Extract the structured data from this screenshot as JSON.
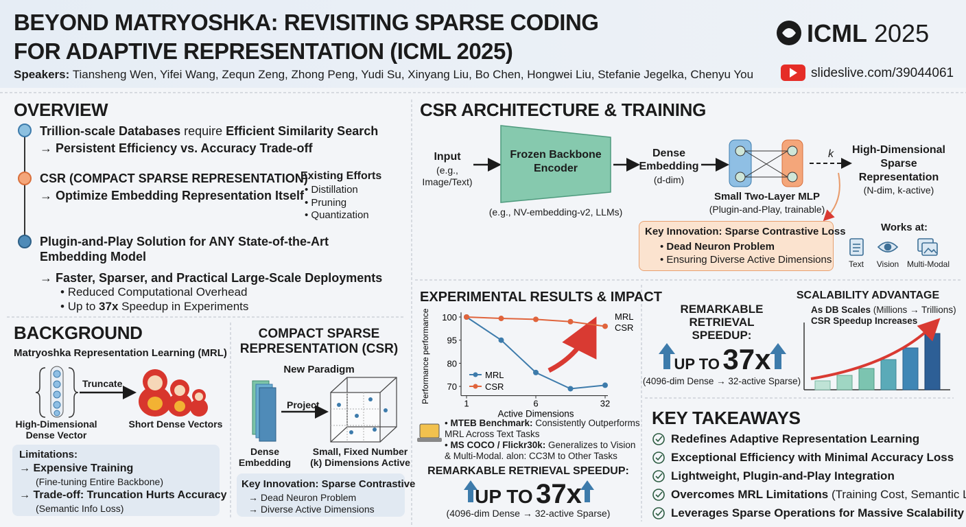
{
  "header": {
    "title_line1": "BEYOND MATRYOSHKA: REVISITING SPARSE CODING",
    "title_line2": "FOR ADAPTIVE REPRESENTATION (ICML 2025)",
    "speakers_label": "Speakers:",
    "speakers": "Tiansheng Wen, Yifei Wang, Zequn Zeng, Zhong Peng, Yudi Su, Xinyang Liu, Bo Chen, Hongwei Liu, Stefanie Jegelka, Chenyu You",
    "logo": {
      "name": "ICML",
      "year": "2025"
    },
    "link": "slideslive.com/39044061"
  },
  "overview": {
    "heading": "OVERVIEW",
    "items": [
      {
        "bold1": "Trillion-scale Databases",
        "plain": " require ",
        "bold2": "Efficient Similarity Search",
        "sub": "→ Persistent Efficiency vs. Accuracy Trade-off"
      },
      {
        "text": "CSR (COMPACT SPARSE REPRESENTATION)",
        "sub": "→ Optimize Embedding Representation Itself"
      },
      {
        "text": "Plugin-and-Play Solution for ANY State-of-the-Art",
        "text2": "Embedding Model",
        "sub": "→ Faster, Sparser, and Practical Large-Scale Deployments",
        "bullets": [
          "Reduced Computational Overhead",
          {
            "pre": "Up to ",
            "bold": "37x",
            "post": " Speedup in Experiments"
          }
        ]
      }
    ],
    "existing": {
      "title": "Existing Efforts",
      "items": [
        "Distillation",
        "Pruning",
        "Quantization"
      ]
    }
  },
  "architecture": {
    "heading": "CSR ARCHITECTURE & TRAINING",
    "input": "Input",
    "input_sub1": "(e.g.,",
    "input_sub2": "Image/Text)",
    "encoder1": "Frozen Backbone",
    "encoder2": "Encoder",
    "encoder_note": "(e.g., NV-embedding-v2, LLMs)",
    "dense1": "Dense",
    "dense2": "Embedding",
    "dense_sub": "(d-dim)",
    "mlp": "Small Two-Layer MLP",
    "mlp_sub": "(Plugin-and-Play, trainable)",
    "k": "k",
    "output1": "High-Dimensional",
    "output2": "Sparse",
    "output3": "Representation",
    "output_sub": "(N-dim, k-active)",
    "innovation": {
      "title": "Key Innovation: Sparse Contrastive Loss",
      "items": [
        "Dead Neuron Problem",
        "Ensuring Diverse Active Dimensions"
      ]
    },
    "works": {
      "title": "Works at:",
      "items": [
        "Text",
        "Vision",
        "Multi-Modal"
      ]
    }
  },
  "background": {
    "heading": "BACKGROUND",
    "mrl_title": "Matryoshka Representation Learning (MRL)",
    "truncate": "Truncate",
    "left1": "High-Dimensional",
    "left2": "Dense Vector",
    "right": "Short Dense Vectors",
    "limitations": {
      "title": "Limitations:",
      "items": [
        {
          "text": "→ Expensive Training",
          "sub": "(Fine-tuning Entire Backbone)"
        },
        {
          "text": "→ Trade-off: Truncation Hurts Accuracy",
          "sub": "(Semantic Info Loss)"
        }
      ]
    }
  },
  "csr": {
    "title1": "COMPACT SPARSE",
    "title2": "REPRESENTATION (CSR)",
    "paradigm": "New Paradigm",
    "project": "Project",
    "left1": "Dense",
    "left2": "Embedding",
    "right1": "Small, Fixed Number",
    "right2": "(k) Dimensions Active",
    "innovation": {
      "title": "Key Innovation: Sparse Contrastive",
      "items": [
        "→ Dead Neuron Problem",
        "→ Diverse Active Dimensions"
      ]
    }
  },
  "results": {
    "heading": "EXPERIMENTAL RESULTS & IMPACT",
    "chart_data": {
      "type": "line",
      "ylabel": "Performance performance",
      "xlabel": "Active Dimensions",
      "categories": [
        "1",
        null,
        "6",
        null,
        "32"
      ],
      "series": [
        {
          "name": "MRL",
          "color": "#3d7bab",
          "values": [
            100,
            95,
            76,
            69,
            70.5
          ]
        },
        {
          "name": "CSR",
          "color": "#e0643c",
          "values": [
            100,
            99.7,
            99.5,
            99,
            98
          ]
        }
      ],
      "ylim": [
        66,
        101
      ],
      "yticks": [
        100,
        95,
        80,
        70
      ],
      "grid": false
    },
    "findings": [
      {
        "bold": "MTEB Benchmark:",
        "text": " Consistently Outperforms MRL Across Text Tasks"
      },
      {
        "bold": "MS COCO / Flickr30k:",
        "text": " Generalizes to Vision & Multi-Modal. alon: CC3M to Other Tasks"
      }
    ],
    "speedup": {
      "title": "REMARKABLE RETRIEVAL SPEEDUP:",
      "up_to": "UP TO",
      "value": "37x",
      "note": "(4096-dim Dense → 32-active Sparse)"
    }
  },
  "speedup": {
    "title": "REMARKABLE RETRIEVAL SPEEDUP:",
    "up_to": "UP TO",
    "value": "37x",
    "note": "(4096-dim Dense → 32-active Sparse)"
  },
  "scalability": {
    "title": "SCALABILITY ADVANTAGE",
    "line1_bold": "As DB Scales",
    "line1": " (Millions → Trillions)",
    "line2": "CSR Speedup Increases"
  },
  "takeaways": {
    "heading": "KEY TAKEAWAYS",
    "items": [
      "Redefines Adaptive Representation Learning",
      "Exceptional Efficiency with Minimal Accuracy Loss",
      "Lightweight, Plugin-and-Play Integration",
      {
        "bold": "Overcomes MRL Limitations",
        "text": " (Training Cost, Semantic Loss)"
      },
      "Leverages Sparse Operations for Massive Scalability"
    ]
  }
}
